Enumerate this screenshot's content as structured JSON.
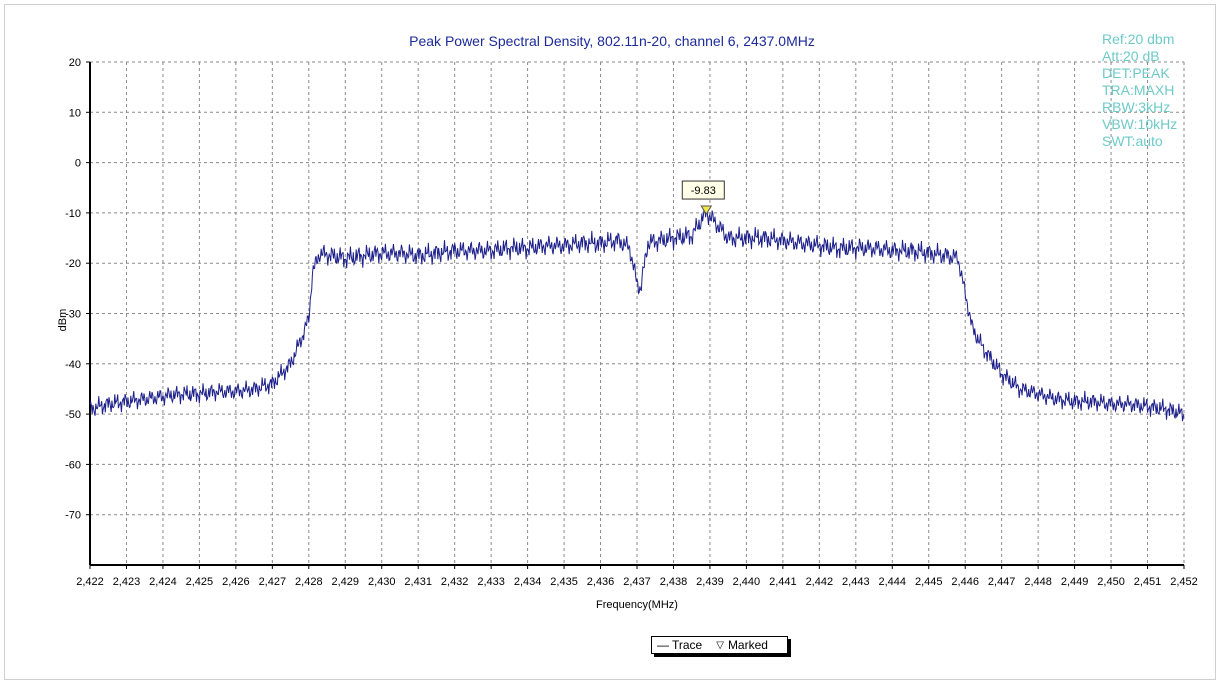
{
  "chart_data": {
    "type": "line",
    "title": "Peak Power Spectral Density, 802.11n-20, channel 6, 2437.0MHz",
    "xlabel": "Frequency(MHz)",
    "ylabel": "dBm",
    "xlim": [
      2422,
      2452
    ],
    "ylim": [
      -80,
      20
    ],
    "grid": true,
    "x_ticks": [
      "2,422",
      "2,423",
      "2,424",
      "2,425",
      "2,426",
      "2,427",
      "2,428",
      "2,429",
      "2,430",
      "2,431",
      "2,432",
      "2,433",
      "2,434",
      "2,435",
      "2,436",
      "2,437",
      "2,438",
      "2,439",
      "2,440",
      "2,441",
      "2,442",
      "2,443",
      "2,444",
      "2,445",
      "2,446",
      "2,447",
      "2,448",
      "2,449",
      "2,450",
      "2,451",
      "2,452"
    ],
    "y_ticks": [
      "20",
      "10",
      "0",
      "-10",
      "-20",
      "-30",
      "-40",
      "-50",
      "-60",
      "-70"
    ],
    "series": [
      {
        "name": "Trace",
        "color": "#1c1f8a",
        "x": [
          2422.0,
          2422.5,
          2423.0,
          2423.5,
          2424.0,
          2424.5,
          2425.0,
          2425.5,
          2426.0,
          2426.5,
          2427.0,
          2427.5,
          2427.8,
          2428.0,
          2428.1,
          2428.3,
          2428.6,
          2429.0,
          2429.5,
          2430.0,
          2430.5,
          2431.0,
          2431.5,
          2432.0,
          2432.5,
          2433.0,
          2433.5,
          2434.0,
          2434.5,
          2435.0,
          2435.5,
          2436.0,
          2436.5,
          2436.8,
          2437.0,
          2437.1,
          2437.3,
          2437.6,
          2438.0,
          2438.5,
          2438.9,
          2439.5,
          2440.0,
          2440.5,
          2441.0,
          2441.5,
          2442.0,
          2442.5,
          2443.0,
          2443.5,
          2444.0,
          2444.5,
          2445.0,
          2445.5,
          2445.8,
          2446.0,
          2446.2,
          2446.5,
          2447.0,
          2447.5,
          2448.0,
          2448.5,
          2449.0,
          2449.5,
          2450.0,
          2450.5,
          2451.0,
          2451.5,
          2452.0
        ],
        "y": [
          -49,
          -48,
          -47.5,
          -47,
          -46.5,
          -46,
          -46,
          -45.5,
          -45.5,
          -45,
          -44,
          -40,
          -35,
          -31,
          -22,
          -18,
          -18.5,
          -19,
          -18.5,
          -18,
          -18,
          -18.5,
          -18,
          -17.5,
          -17.5,
          -17.5,
          -17,
          -17,
          -16.5,
          -16.5,
          -16,
          -16,
          -15.5,
          -17,
          -24,
          -25,
          -16,
          -15.5,
          -15,
          -14.5,
          -9.83,
          -15,
          -15,
          -15,
          -15.5,
          -16,
          -16.5,
          -17,
          -17,
          -17,
          -17.5,
          -17.5,
          -18,
          -18.5,
          -19,
          -26,
          -33,
          -37,
          -42,
          -45,
          -46,
          -47,
          -47.5,
          -47.5,
          -48,
          -48,
          -48.5,
          -49,
          -50
        ]
      }
    ],
    "marker": {
      "x": 2438.9,
      "y": -9.83,
      "label": "-9.83"
    },
    "legend": {
      "placement": "bottom-center",
      "trace_label": "Trace",
      "marked_label": "Marked"
    }
  },
  "instrument": {
    "color": "#6ecac8",
    "lines": [
      "Ref:20 dbm",
      "Att:20 dB",
      "DET:PEAK",
      "TRA:MAXH",
      "RBW:3kHz",
      "VBW:10kHz",
      "SWT:auto"
    ]
  }
}
